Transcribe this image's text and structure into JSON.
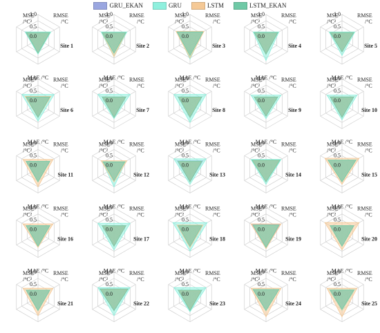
{
  "legend": [
    {
      "name": "GRU_EKAN",
      "color": "#9aa6e0"
    },
    {
      "name": "GRU",
      "color": "#8ff0de"
    },
    {
      "name": "LSTM",
      "color": "#f5c996"
    },
    {
      "name": "LSTM_EKAN",
      "color": "#6fc9a6"
    }
  ],
  "chart_data": {
    "type": "radar",
    "axes": [
      "MAE /°C",
      "RMSE /°C",
      "MSE /°C²"
    ],
    "axis_labels": {
      "mae": "MAE /°C",
      "rmse_top": "RMSE",
      "rmse_bottom": "/°C",
      "mse_top": "MSE",
      "mse_bottom": "/°C²"
    },
    "rlim": [
      0,
      1
    ],
    "ticks": [
      "1.0",
      "0.5",
      "0.0"
    ],
    "series_order": [
      "GRU_EKAN",
      "GRU",
      "LSTM",
      "LSTM_EKAN"
    ],
    "panels": [
      {
        "title": "Site 1",
        "values": {
          "GRU_EKAN": [
            0.55,
            0.55,
            0.6
          ],
          "GRU": [
            0.6,
            0.6,
            0.6
          ],
          "LSTM": [
            0.55,
            0.55,
            0.55
          ],
          "LSTM_EKAN": [
            0.55,
            0.55,
            0.55
          ]
        }
      },
      {
        "title": "Site 2",
        "values": {
          "GRU_EKAN": [
            0.55,
            0.55,
            0.55
          ],
          "GRU": [
            0.7,
            0.6,
            0.6
          ],
          "LSTM": [
            0.7,
            0.55,
            0.55
          ],
          "LSTM_EKAN": [
            0.55,
            0.55,
            0.55
          ]
        }
      },
      {
        "title": "Site 3",
        "values": {
          "GRU_EKAN": [
            0.55,
            0.6,
            0.6
          ],
          "GRU": [
            0.8,
            0.6,
            0.6
          ],
          "LSTM": [
            0.75,
            0.65,
            0.65
          ],
          "LSTM_EKAN": [
            0.65,
            0.6,
            0.6
          ]
        }
      },
      {
        "title": "Site 4",
        "values": {
          "GRU_EKAN": [
            0.55,
            0.55,
            0.55
          ],
          "GRU": [
            0.85,
            0.6,
            0.6
          ],
          "LSTM": [
            0.6,
            0.55,
            0.55
          ],
          "LSTM_EKAN": [
            0.6,
            0.55,
            0.55
          ]
        }
      },
      {
        "title": "Site 5",
        "values": {
          "GRU_EKAN": [
            0.5,
            0.55,
            0.55
          ],
          "GRU": [
            0.65,
            0.6,
            0.6
          ],
          "LSTM": [
            0.5,
            0.55,
            0.55
          ],
          "LSTM_EKAN": [
            0.5,
            0.55,
            0.55
          ]
        }
      },
      {
        "title": "Site 6",
        "values": {
          "GRU_EKAN": [
            0.55,
            0.55,
            0.55
          ],
          "GRU": [
            0.7,
            0.75,
            0.75
          ],
          "LSTM": [
            0.55,
            0.6,
            0.6
          ],
          "LSTM_EKAN": [
            0.55,
            0.55,
            0.55
          ]
        }
      },
      {
        "title": "Site 7",
        "values": {
          "GRU_EKAN": [
            0.55,
            0.55,
            0.55
          ],
          "GRU": [
            0.6,
            0.75,
            0.75
          ],
          "LSTM": [
            0.55,
            0.55,
            0.55
          ],
          "LSTM_EKAN": [
            0.55,
            0.55,
            0.55
          ]
        }
      },
      {
        "title": "Site 8",
        "values": {
          "GRU_EKAN": [
            0.55,
            0.55,
            0.55
          ],
          "GRU": [
            0.75,
            0.75,
            0.75
          ],
          "LSTM": [
            0.5,
            0.5,
            0.5
          ],
          "LSTM_EKAN": [
            0.55,
            0.55,
            0.55
          ]
        }
      },
      {
        "title": "Site 9",
        "values": {
          "GRU_EKAN": [
            0.5,
            0.5,
            0.5
          ],
          "GRU": [
            0.6,
            0.7,
            0.7
          ],
          "LSTM": [
            0.5,
            0.55,
            0.55
          ],
          "LSTM_EKAN": [
            0.5,
            0.55,
            0.55
          ]
        }
      },
      {
        "title": "Site 10",
        "values": {
          "GRU_EKAN": [
            0.55,
            0.55,
            0.55
          ],
          "GRU": [
            0.65,
            0.7,
            0.7
          ],
          "LSTM": [
            0.55,
            0.55,
            0.55
          ],
          "LSTM_EKAN": [
            0.55,
            0.55,
            0.55
          ]
        }
      },
      {
        "title": "Site 11",
        "values": {
          "GRU_EKAN": [
            0.5,
            0.55,
            0.55
          ],
          "GRU": [
            0.55,
            0.55,
            0.55
          ],
          "LSTM": [
            0.75,
            0.7,
            0.7
          ],
          "LSTM_EKAN": [
            0.55,
            0.55,
            0.55
          ]
        }
      },
      {
        "title": "Site 12",
        "values": {
          "GRU_EKAN": [
            0.5,
            0.5,
            0.5
          ],
          "GRU": [
            0.75,
            0.55,
            0.55
          ],
          "LSTM": [
            0.55,
            0.6,
            0.6
          ],
          "LSTM_EKAN": [
            0.5,
            0.5,
            0.5
          ]
        }
      },
      {
        "title": "Site 13",
        "values": {
          "GRU_EKAN": [
            0.55,
            0.6,
            0.6
          ],
          "GRU": [
            0.65,
            0.75,
            0.75
          ],
          "LSTM": [
            0.55,
            0.55,
            0.55
          ],
          "LSTM_EKAN": [
            0.55,
            0.55,
            0.55
          ]
        }
      },
      {
        "title": "Site 14",
        "values": {
          "GRU_EKAN": [
            0.55,
            0.6,
            0.6
          ],
          "GRU": [
            0.65,
            0.7,
            0.7
          ],
          "LSTM": [
            0.55,
            0.6,
            0.6
          ],
          "LSTM_EKAN": [
            0.55,
            0.65,
            0.65
          ]
        }
      },
      {
        "title": "Site 15",
        "values": {
          "GRU_EKAN": [
            0.55,
            0.6,
            0.6
          ],
          "GRU": [
            0.55,
            0.6,
            0.6
          ],
          "LSTM": [
            0.65,
            0.8,
            0.8
          ],
          "LSTM_EKAN": [
            0.55,
            0.65,
            0.65
          ]
        }
      },
      {
        "title": "Site 16",
        "values": {
          "GRU_EKAN": [
            0.55,
            0.55,
            0.55
          ],
          "GRU": [
            0.55,
            0.55,
            0.55
          ],
          "LSTM": [
            0.6,
            0.7,
            0.7
          ],
          "LSTM_EKAN": [
            0.55,
            0.55,
            0.55
          ]
        }
      },
      {
        "title": "Site 17",
        "values": {
          "GRU_EKAN": [
            0.55,
            0.55,
            0.55
          ],
          "GRU": [
            0.7,
            0.75,
            0.75
          ],
          "LSTM": [
            0.55,
            0.55,
            0.55
          ],
          "LSTM_EKAN": [
            0.55,
            0.55,
            0.55
          ]
        }
      },
      {
        "title": "Site 18",
        "values": {
          "GRU_EKAN": [
            0.55,
            0.55,
            0.55
          ],
          "GRU": [
            0.75,
            0.8,
            0.8
          ],
          "LSTM": [
            0.6,
            0.6,
            0.6
          ],
          "LSTM_EKAN": [
            0.55,
            0.55,
            0.55
          ]
        }
      },
      {
        "title": "Site 19",
        "values": {
          "GRU_EKAN": [
            0.6,
            0.65,
            0.65
          ],
          "GRU": [
            0.55,
            0.55,
            0.55
          ],
          "LSTM": [
            0.65,
            0.7,
            0.7
          ],
          "LSTM_EKAN": [
            0.6,
            0.6,
            0.6
          ]
        }
      },
      {
        "title": "Site 20",
        "values": {
          "GRU_EKAN": [
            0.55,
            0.55,
            0.55
          ],
          "GRU": [
            0.55,
            0.55,
            0.55
          ],
          "LSTM": [
            0.7,
            0.8,
            0.8
          ],
          "LSTM_EKAN": [
            0.55,
            0.55,
            0.55
          ]
        }
      },
      {
        "title": "Site 21",
        "values": {
          "GRU_EKAN": [
            0.55,
            0.55,
            0.55
          ],
          "GRU": [
            0.55,
            0.55,
            0.55
          ],
          "LSTM": [
            0.75,
            0.7,
            0.7
          ],
          "LSTM_EKAN": [
            0.55,
            0.55,
            0.55
          ]
        }
      },
      {
        "title": "Site 22",
        "values": {
          "GRU_EKAN": [
            0.55,
            0.65,
            0.65
          ],
          "GRU": [
            0.75,
            0.75,
            0.75
          ],
          "LSTM": [
            0.55,
            0.6,
            0.6
          ],
          "LSTM_EKAN": [
            0.55,
            0.65,
            0.65
          ]
        }
      },
      {
        "title": "Site 23",
        "values": {
          "GRU_EKAN": [
            0.55,
            0.55,
            0.55
          ],
          "GRU": [
            0.6,
            0.75,
            0.75
          ],
          "LSTM": [
            0.5,
            0.5,
            0.5
          ],
          "LSTM_EKAN": [
            0.55,
            0.55,
            0.55
          ]
        }
      },
      {
        "title": "Site 24",
        "values": {
          "GRU_EKAN": [
            0.55,
            0.6,
            0.6
          ],
          "GRU": [
            0.55,
            0.6,
            0.6
          ],
          "LSTM": [
            0.8,
            0.7,
            0.7
          ],
          "LSTM_EKAN": [
            0.55,
            0.6,
            0.6
          ]
        }
      },
      {
        "title": "Site 25",
        "values": {
          "GRU_EKAN": [
            0.5,
            0.55,
            0.55
          ],
          "GRU": [
            0.55,
            0.6,
            0.6
          ],
          "LSTM": [
            0.8,
            0.7,
            0.7
          ],
          "LSTM_EKAN": [
            0.5,
            0.55,
            0.55
          ]
        }
      }
    ]
  }
}
